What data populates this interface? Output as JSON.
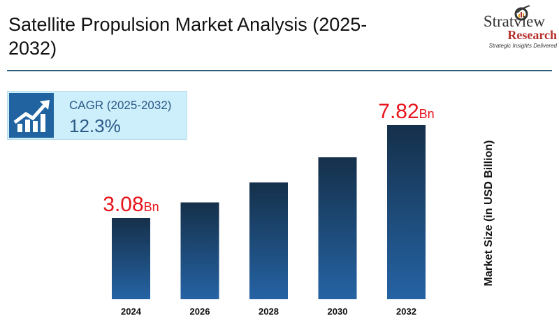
{
  "title": "Satellite Propulsion Market Analysis (2025-2032)",
  "logo": {
    "name": "Stratview",
    "sub": "Research",
    "tagline": "Strategic Insights Delivered"
  },
  "cagr": {
    "label": "CAGR (2025-2032)",
    "value": "12.3%",
    "icon": "growth-chart-icon"
  },
  "colors": {
    "bar_top": "#15304a",
    "bar_bottom": "#2563a4",
    "label": "#e8141c",
    "accent": "#2063a0"
  },
  "chart_data": {
    "type": "bar",
    "title": "Satellite Propulsion Market Analysis (2025-2032)",
    "categories": [
      "2024",
      "2026",
      "2028",
      "2030",
      "2032"
    ],
    "values": [
      3.08,
      3.88,
      4.9,
      6.18,
      7.82
    ],
    "data_labels": [
      {
        "index": 0,
        "value": "3.08",
        "unit": "Bn"
      },
      {
        "index": 4,
        "value": "7.82",
        "unit": "Bn"
      }
    ],
    "xlabel": "",
    "ylabel": "Market Size (in USD Billion)",
    "grid": false,
    "legend": "none"
  }
}
